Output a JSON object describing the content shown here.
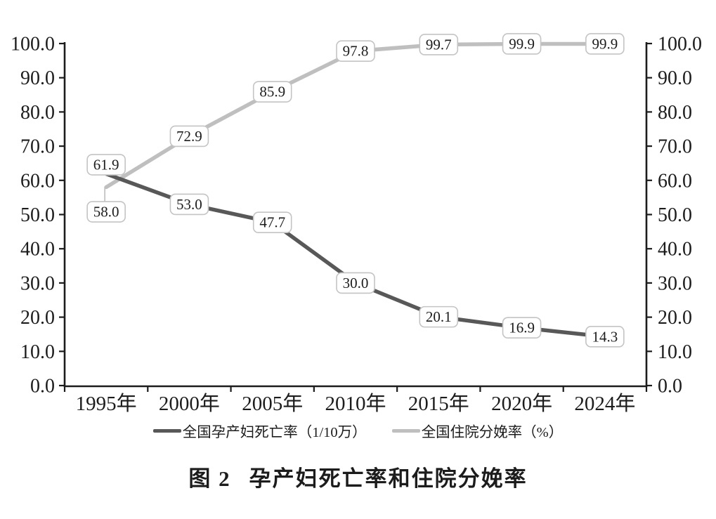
{
  "caption": {
    "prefix": "图 2",
    "title": "孕产妇死亡率和住院分娩率"
  },
  "chart_data": {
    "type": "line",
    "categories": [
      "1995年",
      "2000年",
      "2005年",
      "2010年",
      "2015年",
      "2020年",
      "2024年"
    ],
    "series": [
      {
        "name": "全国孕产妇死亡率（1/10万）",
        "values": [
          61.9,
          53.0,
          47.7,
          30.0,
          20.1,
          16.9,
          14.3
        ],
        "color": "#585858"
      },
      {
        "name": "全国住院分娩率（%）",
        "values": [
          58.0,
          72.9,
          85.9,
          97.8,
          99.7,
          99.9,
          99.9
        ],
        "color": "#bfbfbf"
      }
    ],
    "ylim": [
      0,
      100
    ],
    "ytick_step": 10,
    "ytick_labels": [
      "0.0",
      "10.0",
      "20.0",
      "30.0",
      "40.0",
      "50.0",
      "60.0",
      "70.0",
      "80.0",
      "90.0",
      "100.0"
    ],
    "dual_y_axis": true,
    "grid": false,
    "data_labels": "boxed values on every point",
    "legend_position": "bottom",
    "colors": {
      "axis": "#1c1c1c",
      "text": "#1c1c1c",
      "label_box_bg": "#ffffff",
      "label_box_border": "#c4c4c4",
      "leader_line": "#bdbdbd"
    }
  }
}
